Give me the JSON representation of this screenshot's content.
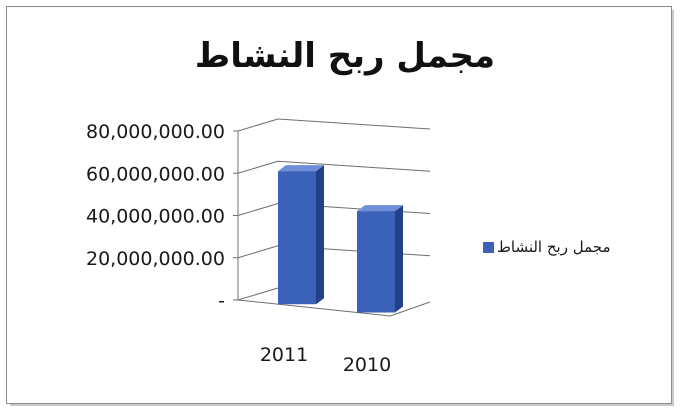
{
  "chart_data": {
    "type": "bar",
    "title": "مجمل ربح النشاط",
    "categories": [
      "2011",
      "2010"
    ],
    "series": [
      {
        "name": "مجمل ربح النشاط",
        "values": [
          63000000,
          48000000
        ]
      }
    ],
    "ylim": [
      0,
      80000000
    ],
    "y_tick_labels": [
      "80,000,000.00",
      "60,000,000.00",
      "40,000,000.00",
      "20,000,000.00",
      "-"
    ],
    "xlabel": "",
    "ylabel": "",
    "legend_position": "right",
    "grid": true,
    "bar_style": "3d",
    "colors": {
      "bar_front": "#3a62b8",
      "bar_side": "#23418a",
      "bar_top": "#6f90d8",
      "grid": "#6f6f6f",
      "legend_swatch": "#3a62b8"
    }
  }
}
